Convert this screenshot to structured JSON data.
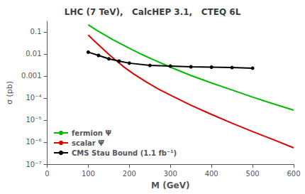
{
  "chart_data": {
    "type": "line",
    "title": "LHC (7 TeV),   CalcHEP 3.1,   CTEQ 6L",
    "xlabel": "M (GeV)",
    "ylabel": "σ (pb)",
    "log": "y",
    "xlim": [
      0,
      600
    ],
    "xticks": [
      0,
      100,
      200,
      300,
      400,
      500,
      600
    ],
    "ylim": [
      1e-07,
      0.3
    ],
    "yticks": [
      {
        "value": 1e-07,
        "label": "10⁻⁷"
      },
      {
        "value": 1e-06,
        "label": "10⁻⁶"
      },
      {
        "value": 1e-05,
        "label": "10⁻⁵"
      },
      {
        "value": 0.0001,
        "label": "10⁻⁴"
      },
      0.001,
      0.01,
      0.1
    ],
    "grid": false,
    "legend": "lower left",
    "series": [
      {
        "name": "fermion Ψ",
        "color": "#00bb00",
        "marker": "none",
        "x": [
          100,
          120,
          140,
          160,
          180,
          200,
          230,
          260,
          300,
          350,
          400,
          450,
          500,
          550,
          600
        ],
        "values": [
          0.21,
          0.12,
          0.072,
          0.044,
          0.028,
          0.018,
          0.0095,
          0.0053,
          0.0025,
          0.00105,
          0.00048,
          0.00023,
          0.00011,
          5.5e-05,
          2.8e-05
        ]
      },
      {
        "name": "scalar Ψ̅",
        "color": "#dd0000",
        "marker": "none",
        "x": [
          100,
          115,
          130,
          150,
          170,
          190,
          210,
          240,
          270,
          300,
          350,
          400,
          450,
          500,
          550,
          600
        ],
        "values": [
          0.072,
          0.038,
          0.021,
          0.0095,
          0.0046,
          0.0023,
          0.00125,
          0.00055,
          0.00026,
          0.000135,
          4.7e-05,
          1.8e-05,
          7.2e-06,
          3e-06,
          1.3e-06,
          5.5e-07
        ]
      },
      {
        "name": "CMS Stau Bound (1.1 fb⁻¹)",
        "color": "#000000",
        "marker": "circle",
        "x": [
          100,
          125,
          150,
          175,
          200,
          250,
          300,
          350,
          400,
          450,
          500
        ],
        "values": [
          0.012,
          0.0085,
          0.006,
          0.0047,
          0.0038,
          0.003,
          0.0028,
          0.0026,
          0.0025,
          0.0024,
          0.00225
        ]
      }
    ]
  }
}
